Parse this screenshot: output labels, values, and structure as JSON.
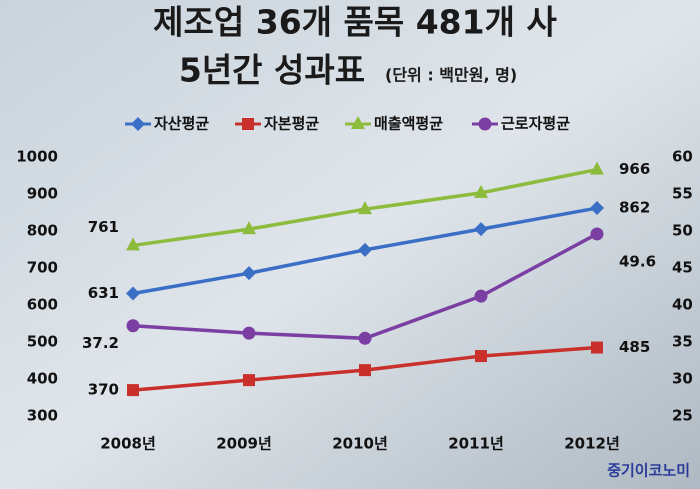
{
  "chart_data": {
    "type": "line",
    "title": [
      "제조업 36개 품목 481개 사",
      "5년간 성과표"
    ],
    "subtitle": "(단위 : 백만원, 명)",
    "source": "중기이코노미",
    "categories": [
      "2008년",
      "2009년",
      "2010년",
      "2011년",
      "2012년"
    ],
    "ylim": [
      300,
      1000
    ],
    "yticks": [
      300,
      400,
      500,
      600,
      700,
      800,
      900,
      1000
    ],
    "y2lim": [
      25,
      60
    ],
    "y2ticks": [
      25,
      30,
      35,
      40,
      45,
      50,
      55,
      60
    ],
    "legend": "top",
    "series": [
      {
        "name": "자산평균",
        "color": "#3b6fc6",
        "marker": "diamond",
        "values": [
          631,
          686,
          749,
          805,
          862
        ]
      },
      {
        "name": "자본평균",
        "color": "#c9302c",
        "marker": "square",
        "values": [
          370,
          397,
          424,
          462,
          485
        ]
      },
      {
        "name": "매출액평균",
        "color": "#8dbb3c",
        "marker": "triangle",
        "values": [
          761,
          805,
          859,
          903,
          966
        ]
      },
      {
        "name": "근로자평균",
        "color": "#7b3fa3",
        "marker": "circle",
        "axis": "y2",
        "values": [
          37.2,
          36.2,
          35.5,
          41.2,
          49.6
        ]
      }
    ]
  }
}
